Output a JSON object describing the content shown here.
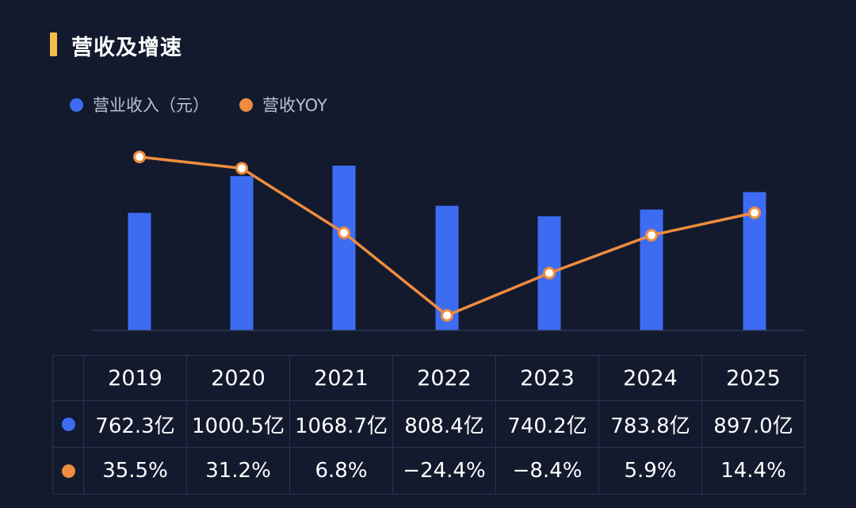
{
  "title": "营收及增速",
  "legend": [
    {
      "label": "营业收入（元）",
      "color": "#3d6cf2"
    },
    {
      "label": "营收YOY",
      "color": "#f08c3e"
    }
  ],
  "chart_data": {
    "type": "bar",
    "categories": [
      "2019",
      "2020",
      "2021",
      "2022",
      "2023",
      "2024",
      "2025"
    ],
    "series": [
      {
        "name": "营业收入（元）",
        "type": "bar",
        "values": [
          762.3,
          1000.5,
          1068.7,
          808.4,
          740.2,
          783.8,
          897.0
        ],
        "unit": "亿",
        "color": "#3d6cf2"
      },
      {
        "name": "营收YOY",
        "type": "line",
        "values": [
          35.5,
          31.2,
          6.8,
          -24.4,
          -8.4,
          5.9,
          14.4
        ],
        "unit": "%",
        "color": "#f08c3e"
      }
    ]
  },
  "table": {
    "headers": [
      "2019",
      "2020",
      "2021",
      "2022",
      "2023",
      "2024",
      "2025"
    ],
    "revenue_row": [
      "762.3亿",
      "1000.5亿",
      "1068.7亿",
      "808.4亿",
      "740.2亿",
      "783.8亿",
      "897.0亿"
    ],
    "yoy_row": [
      "35.5%",
      "31.2%",
      "6.8%",
      "−24.4%",
      "−8.4%",
      "5.9%",
      "14.4%"
    ]
  }
}
